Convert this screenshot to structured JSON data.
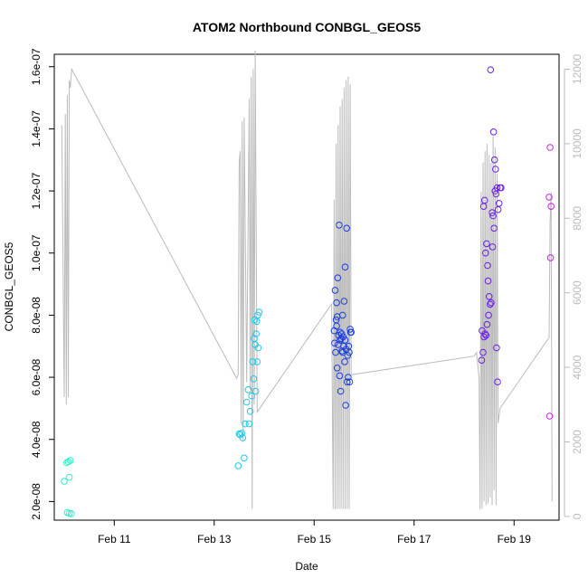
{
  "chart_data": {
    "type": "scatter",
    "title": "ATOM2 Northbound CONBGL_GEOS5",
    "xlabel": "Date",
    "ylabel": "CONBGL_GEOS5",
    "x_unit": "days (0 = Feb 10, 00:00)",
    "xlim": [
      9.8,
      19.9
    ],
    "ylim": [
      1.4e-08,
      1.64e-07
    ],
    "x_ticks": [
      {
        "value": 11,
        "label": "Feb 11"
      },
      {
        "value": 13,
        "label": "Feb 13"
      },
      {
        "value": 15,
        "label": "Feb 15"
      },
      {
        "value": 17,
        "label": "Feb 17"
      },
      {
        "value": 19,
        "label": "Feb 19"
      }
    ],
    "y_ticks": [
      {
        "value": 2e-08,
        "label": "2.0e-08"
      },
      {
        "value": 4e-08,
        "label": "4.0e-08"
      },
      {
        "value": 6e-08,
        "label": "6.0e-08"
      },
      {
        "value": 8e-08,
        "label": "8.0e-08"
      },
      {
        "value": 1e-07,
        "label": "1.0e-07"
      },
      {
        "value": 1.2e-07,
        "label": "1.2e-07"
      },
      {
        "value": 1.4e-07,
        "label": "1.4e-07"
      },
      {
        "value": 1.6e-07,
        "label": "1.6e-07"
      }
    ],
    "y2lim": [
      -100,
      12400
    ],
    "y2_ticks": [
      0,
      2000,
      4000,
      6000,
      8000,
      10000,
      12000
    ],
    "grid": false,
    "legend": "none",
    "point_color_scale": [
      "#00ffcc",
      "#00ccff",
      "#0000ff",
      "#7700ff",
      "#cc00ff"
    ],
    "altitude_color": "#bbbbbb",
    "series": [
      {
        "kind": "points",
        "color": "#2af2c8",
        "points": [
          [
            10.0,
            2.65e-08
          ],
          [
            10.05,
            3.25e-08
          ],
          [
            10.08,
            3.28e-08
          ],
          [
            10.12,
            3.32e-08
          ],
          [
            10.1,
            2.78e-08
          ],
          [
            10.06,
            1.65e-08
          ],
          [
            10.1,
            1.62e-08
          ],
          [
            10.14,
            1.61e-08
          ]
        ]
      },
      {
        "kind": "points",
        "color": "#1ec8ea",
        "points": [
          [
            13.48,
            3.15e-08
          ],
          [
            13.52,
            4.15e-08
          ],
          [
            13.55,
            4.2e-08
          ],
          [
            13.57,
            4.05e-08
          ],
          [
            13.5,
            4.18e-08
          ],
          [
            13.6,
            3.4e-08
          ],
          [
            13.62,
            4.5e-08
          ],
          [
            13.65,
            5.2e-08
          ],
          [
            13.68,
            5.6e-08
          ],
          [
            13.7,
            4.5e-08
          ],
          [
            13.72,
            4.9e-08
          ],
          [
            13.75,
            5.4e-08
          ],
          [
            13.77,
            6.5e-08
          ],
          [
            13.8,
            7.25e-08
          ],
          [
            13.82,
            7.05e-08
          ],
          [
            13.85,
            7.8e-08
          ],
          [
            13.87,
            8e-08
          ],
          [
            13.9,
            8.1e-08
          ],
          [
            13.88,
            6.95e-08
          ],
          [
            13.86,
            6.5e-08
          ],
          [
            13.83,
            5.55e-08
          ],
          [
            13.79,
            5.95e-08
          ],
          [
            13.84,
            7.4e-08
          ],
          [
            13.81,
            7.85e-08
          ]
        ]
      },
      {
        "kind": "points",
        "color": "#1a3de0",
        "points": [
          [
            15.4,
            7.5e-08
          ],
          [
            15.42,
            8.8e-08
          ],
          [
            15.45,
            8.4e-08
          ],
          [
            15.47,
            9.2e-08
          ],
          [
            15.5,
            1.09e-07
          ],
          [
            15.52,
            7.2e-08
          ],
          [
            15.55,
            7.4e-08
          ],
          [
            15.57,
            8e-08
          ],
          [
            15.6,
            8.45e-08
          ],
          [
            15.62,
            9.55e-08
          ],
          [
            15.65,
            1.08e-07
          ],
          [
            15.43,
            6.8e-08
          ],
          [
            15.46,
            6.3e-08
          ],
          [
            15.48,
            7.05e-08
          ],
          [
            15.51,
            6.05e-08
          ],
          [
            15.53,
            5.55e-08
          ],
          [
            15.56,
            6.85e-08
          ],
          [
            15.58,
            7.3e-08
          ],
          [
            15.61,
            6.5e-08
          ],
          [
            15.63,
            5.1e-08
          ],
          [
            15.66,
            5.85e-08
          ],
          [
            15.68,
            6e-08
          ],
          [
            15.7,
            6.8e-08
          ],
          [
            15.72,
            7.55e-08
          ],
          [
            15.74,
            7.45e-08
          ],
          [
            15.44,
            7.85e-08
          ],
          [
            15.49,
            7.35e-08
          ],
          [
            15.54,
            7.25e-08
          ],
          [
            15.59,
            7e-08
          ],
          [
            15.64,
            6.9e-08
          ],
          [
            15.67,
            6.7e-08
          ],
          [
            15.71,
            5.85e-08
          ],
          [
            15.41,
            7.1e-08
          ],
          [
            15.46,
            7.95e-08
          ],
          [
            15.52,
            7.45e-08
          ],
          [
            15.57,
            6.8e-08
          ],
          [
            15.62,
            7.2e-08
          ],
          [
            15.69,
            7e-08
          ],
          [
            15.73,
            7.45e-08
          ],
          [
            15.45,
            7.65e-08
          ]
        ]
      },
      {
        "kind": "points",
        "color": "#6a1ee8",
        "points": [
          [
            18.35,
            6.55e-08
          ],
          [
            18.38,
            6.8e-08
          ],
          [
            18.4,
            7.3e-08
          ],
          [
            18.42,
            7.4e-08
          ],
          [
            18.44,
            7.35e-08
          ],
          [
            18.36,
            7.5e-08
          ],
          [
            18.39,
            1.15e-07
          ],
          [
            18.41,
            1.17e-07
          ],
          [
            18.43,
            1e-07
          ],
          [
            18.45,
            1.03e-07
          ],
          [
            18.47,
            9.6e-08
          ],
          [
            18.48,
            9.1e-08
          ],
          [
            18.5,
            8.6e-08
          ],
          [
            18.52,
            8.35e-08
          ],
          [
            18.54,
            8.4e-08
          ],
          [
            18.56,
            1.13e-07
          ],
          [
            18.58,
            1.12e-07
          ],
          [
            18.6,
            1.08e-07
          ],
          [
            18.62,
            1.2e-07
          ],
          [
            18.64,
            1.19e-07
          ],
          [
            18.66,
            1.21e-07
          ],
          [
            18.68,
            1.14e-07
          ],
          [
            18.7,
            1.16e-07
          ],
          [
            18.72,
            1.21e-07
          ],
          [
            18.74,
            1.21e-07
          ],
          [
            18.57,
            1.02e-07
          ],
          [
            18.53,
            1.59e-07
          ],
          [
            18.59,
            1.39e-07
          ],
          [
            18.61,
            1.3e-07
          ],
          [
            18.63,
            1.27e-07
          ],
          [
            18.65,
            6.95e-08
          ],
          [
            18.67,
            5.85e-08
          ],
          [
            18.49,
            8e-08
          ],
          [
            18.46,
            7.7e-08
          ]
        ]
      },
      {
        "kind": "points",
        "color": "#c81ee6",
        "points": [
          [
            19.7,
            1.18e-07
          ],
          [
            19.72,
            1.34e-07
          ],
          [
            19.74,
            1.15e-07
          ],
          [
            19.73,
            9.85e-08
          ],
          [
            19.71,
            4.75e-08
          ]
        ]
      },
      {
        "kind": "line",
        "axis": "right",
        "color": "#bbbbbb",
        "points": [
          [
            9.95,
            10500
          ],
          [
            10.0,
            3200
          ],
          [
            10.02,
            10800
          ],
          [
            10.04,
            3000
          ],
          [
            10.06,
            11300
          ],
          [
            10.08,
            3200
          ],
          [
            10.1,
            11700
          ],
          [
            10.12,
            11500
          ],
          [
            10.15,
            12000
          ],
          [
            13.45,
            3700
          ],
          [
            13.48,
            3800
          ],
          [
            13.5,
            9500
          ],
          [
            13.52,
            9800
          ],
          [
            13.54,
            2500
          ],
          [
            13.56,
            10600
          ],
          [
            13.58,
            2000
          ],
          [
            13.6,
            10700
          ],
          [
            13.65,
            3600
          ],
          [
            13.7,
            11200
          ],
          [
            13.72,
            3400
          ],
          [
            13.74,
            11800
          ],
          [
            13.76,
            200
          ],
          [
            13.78,
            12000
          ],
          [
            13.8,
            3000
          ],
          [
            13.82,
            12500
          ],
          [
            13.86,
            2800
          ],
          [
            15.35,
            5700
          ],
          [
            15.38,
            200
          ],
          [
            15.4,
            8500
          ],
          [
            15.42,
            200
          ],
          [
            15.44,
            10000
          ],
          [
            15.46,
            200
          ],
          [
            15.48,
            10500
          ],
          [
            15.5,
            200
          ],
          [
            15.52,
            11000
          ],
          [
            15.54,
            200
          ],
          [
            15.56,
            11200
          ],
          [
            15.58,
            200
          ],
          [
            15.6,
            11500
          ],
          [
            15.62,
            200
          ],
          [
            15.64,
            11700
          ],
          [
            15.66,
            200
          ],
          [
            15.68,
            11800
          ],
          [
            15.7,
            200
          ],
          [
            15.72,
            11600
          ],
          [
            15.74,
            3800
          ],
          [
            18.2,
            4300
          ],
          [
            18.25,
            4400
          ],
          [
            18.3,
            3700
          ],
          [
            18.32,
            200
          ],
          [
            18.34,
            8700
          ],
          [
            18.36,
            200
          ],
          [
            18.38,
            9500
          ],
          [
            18.4,
            400
          ],
          [
            18.42,
            9800
          ],
          [
            18.44,
            300
          ],
          [
            18.46,
            10000
          ],
          [
            18.48,
            350
          ],
          [
            18.5,
            9700
          ],
          [
            18.52,
            500
          ],
          [
            18.54,
            9500
          ],
          [
            18.56,
            300
          ],
          [
            18.58,
            10200
          ],
          [
            18.6,
            700
          ],
          [
            18.62,
            9900
          ],
          [
            18.64,
            300
          ],
          [
            18.66,
            9200
          ],
          [
            18.68,
            2500
          ],
          [
            18.72,
            2900
          ],
          [
            19.7,
            4800
          ],
          [
            19.72,
            7900
          ],
          [
            19.74,
            8700
          ],
          [
            19.76,
            400
          ]
        ]
      }
    ]
  }
}
